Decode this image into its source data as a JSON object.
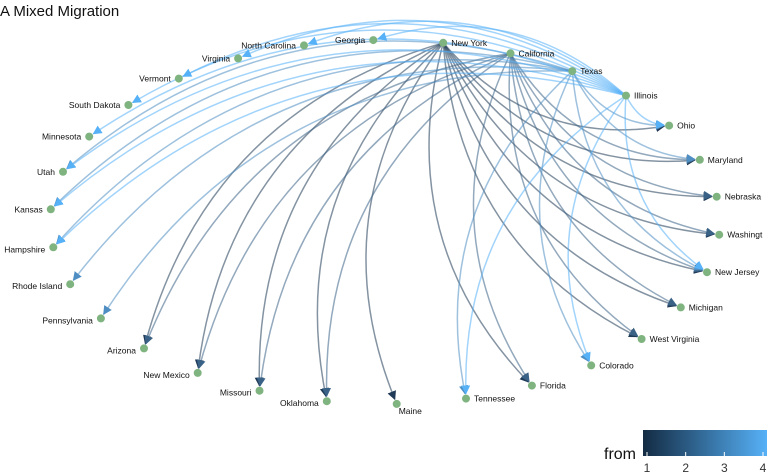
{
  "title": "A Mixed Migration",
  "nodes": [
    "Georgia",
    "North Carolina",
    "Virginia",
    "Vermont",
    "South Dakota",
    "Minnesota",
    "Utah",
    "Kansas",
    "Hampshire",
    "Rhode Island",
    "Pennsylvania",
    "Arizona",
    "New Mexico",
    "Missouri",
    "Oklahoma",
    "Maine",
    "Tennessee",
    "Florida",
    "Colorado",
    "West Virginia",
    "Michigan",
    "New Jersey",
    "Washingt",
    "Nebraska",
    "Maryland",
    "Ohio",
    "Illinois",
    "Texas",
    "California",
    "New York"
  ],
  "edges": [
    {
      "from": "New York",
      "to": "Maryland",
      "group": 1
    },
    {
      "from": "New York",
      "to": "Nebraska",
      "group": 1
    },
    {
      "from": "New York",
      "to": "Washingt",
      "group": 1
    },
    {
      "from": "New York",
      "to": "New Jersey",
      "group": 1
    },
    {
      "from": "New York",
      "to": "Michigan",
      "group": 1
    },
    {
      "from": "New York",
      "to": "West Virginia",
      "group": 1
    },
    {
      "from": "New York",
      "to": "Florida",
      "group": 1
    },
    {
      "from": "New York",
      "to": "Maine",
      "group": 1
    },
    {
      "from": "New York",
      "to": "Oklahoma",
      "group": 1
    },
    {
      "from": "New York",
      "to": "Missouri",
      "group": 1
    },
    {
      "from": "New York",
      "to": "New Mexico",
      "group": 1
    },
    {
      "from": "New York",
      "to": "Arizona",
      "group": 1
    },
    {
      "from": "New York",
      "to": "Ohio",
      "group": 1
    },
    {
      "from": "California",
      "to": "Maryland",
      "group": 2
    },
    {
      "from": "California",
      "to": "Nebraska",
      "group": 2
    },
    {
      "from": "California",
      "to": "Washingt",
      "group": 2
    },
    {
      "from": "California",
      "to": "New Jersey",
      "group": 2
    },
    {
      "from": "California",
      "to": "Michigan",
      "group": 2
    },
    {
      "from": "California",
      "to": "West Virginia",
      "group": 2
    },
    {
      "from": "California",
      "to": "Florida",
      "group": 2
    },
    {
      "from": "California",
      "to": "Oklahoma",
      "group": 2
    },
    {
      "from": "California",
      "to": "Missouri",
      "group": 2
    },
    {
      "from": "California",
      "to": "New Mexico",
      "group": 2
    },
    {
      "from": "California",
      "to": "Arizona",
      "group": 2
    },
    {
      "from": "Texas",
      "to": "Ohio",
      "group": 3
    },
    {
      "from": "Texas",
      "to": "Maryland",
      "group": 3
    },
    {
      "from": "Texas",
      "to": "New Jersey",
      "group": 3
    },
    {
      "from": "Texas",
      "to": "Tennessee",
      "group": 3
    },
    {
      "from": "Texas",
      "to": "Pennsylvania",
      "group": 3
    },
    {
      "from": "Texas",
      "to": "Rhode Island",
      "group": 3
    },
    {
      "from": "Texas",
      "to": "Hampshire",
      "group": 3
    },
    {
      "from": "Texas",
      "to": "Kansas",
      "group": 3
    },
    {
      "from": "Texas",
      "to": "Utah",
      "group": 3
    },
    {
      "from": "Texas",
      "to": "Colorado",
      "group": 3
    },
    {
      "from": "Illinois",
      "to": "Georgia",
      "group": 4
    },
    {
      "from": "Illinois",
      "to": "North Carolina",
      "group": 4
    },
    {
      "from": "Illinois",
      "to": "Virginia",
      "group": 4
    },
    {
      "from": "Illinois",
      "to": "Vermont",
      "group": 4
    },
    {
      "from": "Illinois",
      "to": "South Dakota",
      "group": 4
    },
    {
      "from": "Illinois",
      "to": "Minnesota",
      "group": 4
    },
    {
      "from": "Illinois",
      "to": "Utah",
      "group": 4
    },
    {
      "from": "Illinois",
      "to": "Kansas",
      "group": 4
    },
    {
      "from": "Illinois",
      "to": "Hampshire",
      "group": 4
    },
    {
      "from": "Illinois",
      "to": "Colorado",
      "group": 4
    },
    {
      "from": "Illinois",
      "to": "Tennessee",
      "group": 4
    },
    {
      "from": "Illinois",
      "to": "New Jersey",
      "group": 4
    },
    {
      "from": "Illinois",
      "to": "Ohio",
      "group": 4
    }
  ],
  "legend": {
    "title": "from",
    "ticks": [
      "1",
      "2",
      "3",
      "4"
    ],
    "color_low": "#132B43",
    "color_high": "#56B1F7"
  },
  "colors": {
    "node": "#7fb37f",
    "group_1": "#1f3a56",
    "group_2": "#3a6286",
    "group_3": "#4f8ec2",
    "group_4": "#56b1f7"
  }
}
